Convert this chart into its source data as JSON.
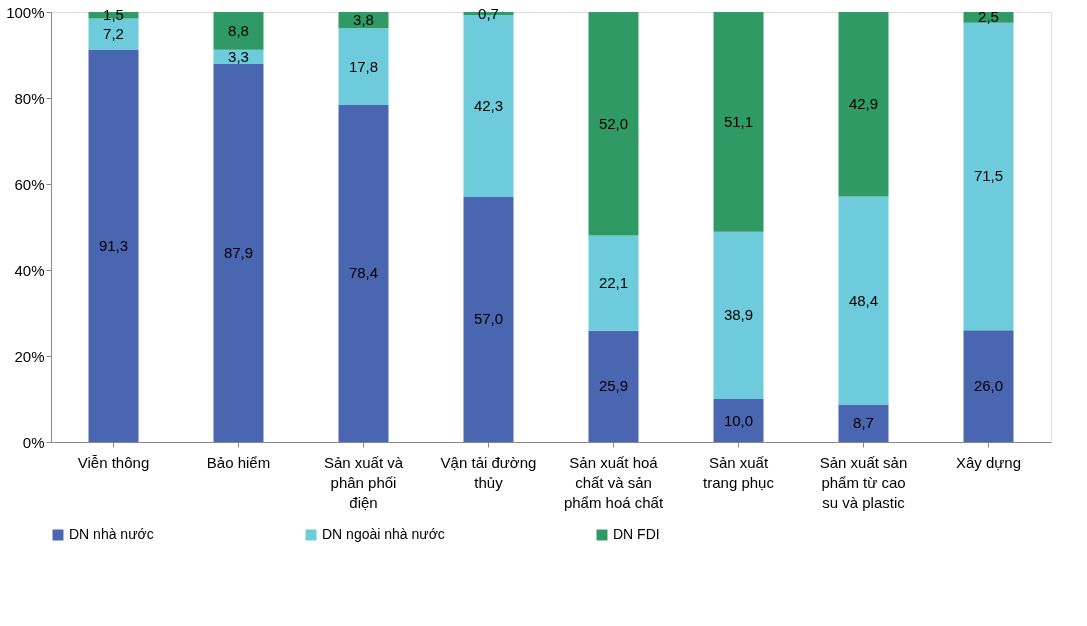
{
  "chart_data": {
    "type": "bar",
    "stacked": true,
    "categories": [
      "Viễn thông",
      "Bảo hiểm",
      "Sản xuất và phân phối điện",
      "Vận tải đường thủy",
      "Sản xuất hoá chất và sản phẩm hoá chất",
      "Sản xuất trang phục",
      "Sản xuất sản phẩm từ cao su và plastic",
      "Xây dựng"
    ],
    "series": [
      {
        "name": "DN nhà nước",
        "color": "#4a66b0",
        "values": [
          91.3,
          87.9,
          78.4,
          57.0,
          25.9,
          10.0,
          8.7,
          26.0
        ],
        "value_labels": [
          "91,3",
          "87,9",
          "78,4",
          "57,0",
          "25,9",
          "10,0",
          "8,7",
          "26,0"
        ]
      },
      {
        "name": "DN ngoài nhà nước",
        "color": "#6dcbdc",
        "values": [
          7.2,
          3.3,
          17.8,
          42.3,
          22.1,
          38.9,
          48.4,
          71.5
        ],
        "value_labels": [
          "7,2",
          "3,3",
          "17,8",
          "42,3",
          "22,1",
          "38,9",
          "48,4",
          "71,5"
        ]
      },
      {
        "name": "DN FDI",
        "color": "#2f9a63",
        "values": [
          1.5,
          8.8,
          3.8,
          0.7,
          52.0,
          51.1,
          42.9,
          2.5
        ],
        "value_labels": [
          "1,5",
          "8,8",
          "3,8",
          "0,7",
          "52,0",
          "51,1",
          "42,9",
          "2,5"
        ]
      }
    ],
    "ylim": [
      0,
      100
    ],
    "yticks": [
      {
        "value": 0,
        "label": "0%"
      },
      {
        "value": 20,
        "label": "20%"
      },
      {
        "value": 40,
        "label": "40%"
      },
      {
        "value": 60,
        "label": "60%"
      },
      {
        "value": 80,
        "label": "80%"
      },
      {
        "value": 100,
        "label": "100%"
      }
    ],
    "legend": "bottom"
  }
}
